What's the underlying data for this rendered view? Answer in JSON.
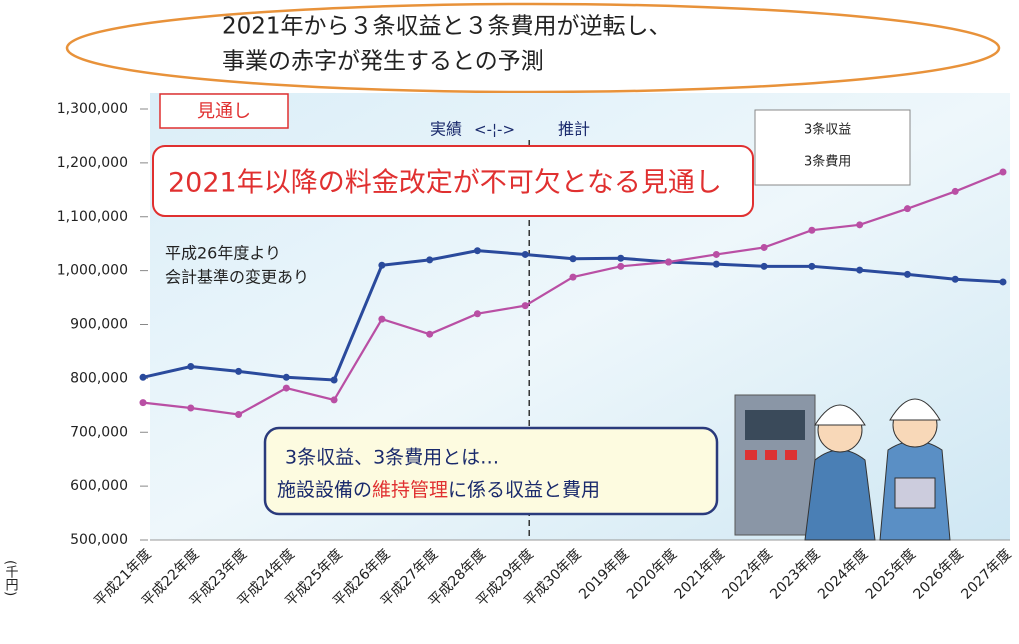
{
  "header": {
    "lines": [
      "2021年から３条収益と３条費用が逆転し、",
      "事業の赤字が発生するとの予測"
    ]
  },
  "chart_data": {
    "type": "line",
    "badge": "見通し",
    "period_labels": [
      "実績",
      "<-¦->",
      "推計"
    ],
    "callout": "2021年以降の料金改定が不可欠となる見通し",
    "note": [
      "平成26年度より",
      "会計基準の変更あり"
    ],
    "definition": {
      "line1": "3条収益、3条費用とは…",
      "line2": [
        "施設設備の",
        "維持管理",
        "に係る収益と費用"
      ]
    },
    "ylabel": "(千円)",
    "categories": [
      "平成21年度",
      "平成22年度",
      "平成23年度",
      "平成24年度",
      "平成25年度",
      "平成26年度",
      "平成27年度",
      "平成28年度",
      "平成29年度",
      "平成30年度",
      "2019年度",
      "2020年度",
      "2021年度",
      "2022年度",
      "2023年度",
      "2024年度",
      "2025年度",
      "2026年度",
      "2027年度"
    ],
    "series": [
      {
        "name": "3条収益",
        "color": "#2a4a9c",
        "values": [
          802000,
          822000,
          813000,
          802000,
          797000,
          1010000,
          1020000,
          1037000,
          1030000,
          1022000,
          1023000,
          1016000,
          1012000,
          1008000,
          1008000,
          1001000,
          993000,
          984000,
          979000
        ]
      },
      {
        "name": "3条費用",
        "color": "#b94fa4",
        "values": [
          755000,
          745000,
          733000,
          782000,
          760000,
          910000,
          882000,
          920000,
          935000,
          988000,
          1008000,
          1016000,
          1030000,
          1043000,
          1075000,
          1085000,
          1115000,
          1147000,
          1183000
        ]
      }
    ],
    "ylim": [
      500000,
      1300000
    ],
    "yticks": [
      {
        "value": 500000,
        "label": "500,000"
      },
      {
        "value": 600000,
        "label": "600,000"
      },
      {
        "value": 700000,
        "label": "700,000"
      },
      {
        "value": 800000,
        "label": "800,000"
      },
      {
        "value": 900000,
        "label": "900,000"
      },
      {
        "value": 1000000,
        "label": "1,000,000"
      },
      {
        "value": 1100000,
        "label": "1,100,000"
      },
      {
        "value": 1200000,
        "label": "1,200,000"
      },
      {
        "value": 1300000,
        "label": "1,300,000"
      }
    ],
    "legend": "top-right"
  }
}
